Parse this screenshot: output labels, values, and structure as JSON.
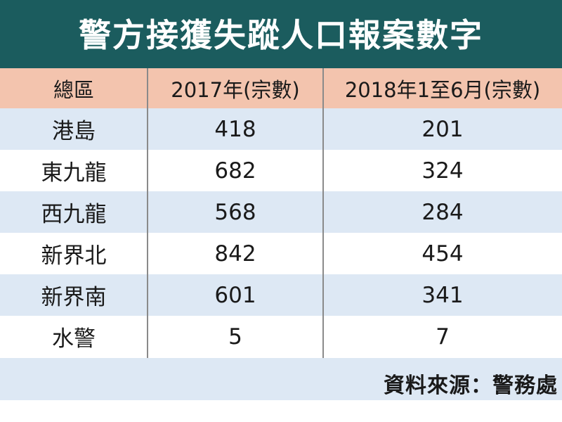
{
  "title": "警方接獲失蹤人口報案數字",
  "columns": [
    "總區",
    "2017年(宗數)",
    "2018年1至6月(宗數)"
  ],
  "rows": [
    {
      "district": "港島",
      "y2017": "418",
      "y2018h1": "201"
    },
    {
      "district": "東九龍",
      "y2017": "682",
      "y2018h1": "324"
    },
    {
      "district": "西九龍",
      "y2017": "568",
      "y2018h1": "284"
    },
    {
      "district": "新界北",
      "y2017": "842",
      "y2018h1": "454"
    },
    {
      "district": "新界南",
      "y2017": "601",
      "y2018h1": "341"
    },
    {
      "district": "水警",
      "y2017": "5",
      "y2018h1": "7"
    }
  ],
  "source": "資料來源：警務處",
  "colors": {
    "banner": "#1b5c5e",
    "header": "#f3c4ae",
    "row_shade": "#dde8f4"
  }
}
